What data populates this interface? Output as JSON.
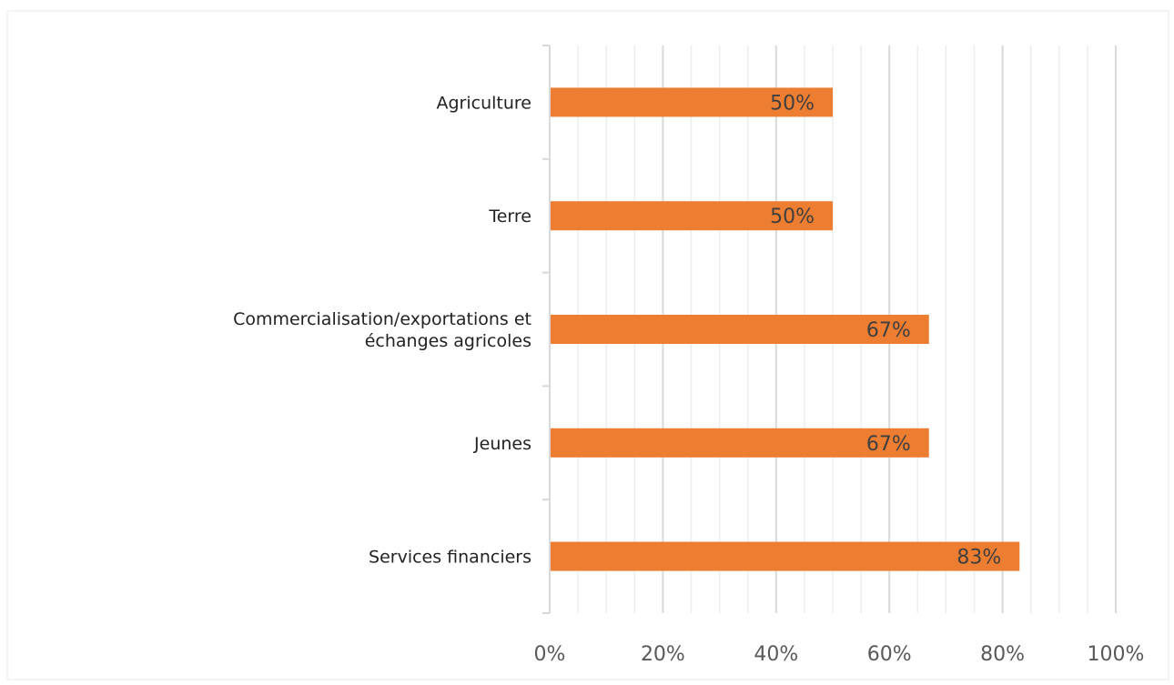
{
  "chart_data": {
    "type": "bar",
    "orientation": "horizontal",
    "categories": [
      "Agriculture",
      "Terre",
      "Commercialisation/exportations et échanges agricoles",
      "Jeunes",
      "Services financiers"
    ],
    "category_lines": [
      [
        "Agriculture"
      ],
      [
        "Terre"
      ],
      [
        "Commercialisation/exportations et",
        "échanges agricoles"
      ],
      [
        "Jeunes"
      ],
      [
        "Services financiers"
      ]
    ],
    "values": [
      50,
      50,
      67,
      67,
      83
    ],
    "data_labels": [
      "50%",
      "50%",
      "67%",
      "67%",
      "83%"
    ],
    "xlim": [
      0,
      100
    ],
    "x_ticks": [
      0,
      20,
      40,
      60,
      80,
      100
    ],
    "x_tick_labels": [
      "0%",
      "20%",
      "40%",
      "60%",
      "80%",
      "100%"
    ],
    "title": "",
    "xlabel": "",
    "ylabel": "",
    "grid": "vertical major and minor",
    "legend": "none",
    "colors": {
      "bar": "#ED7D31",
      "major_grid": "#D9D9D9",
      "minor_grid": "#EDEDED",
      "tick_text": "#595959",
      "category_text": "#222222",
      "data_label_text": "#404040"
    }
  }
}
